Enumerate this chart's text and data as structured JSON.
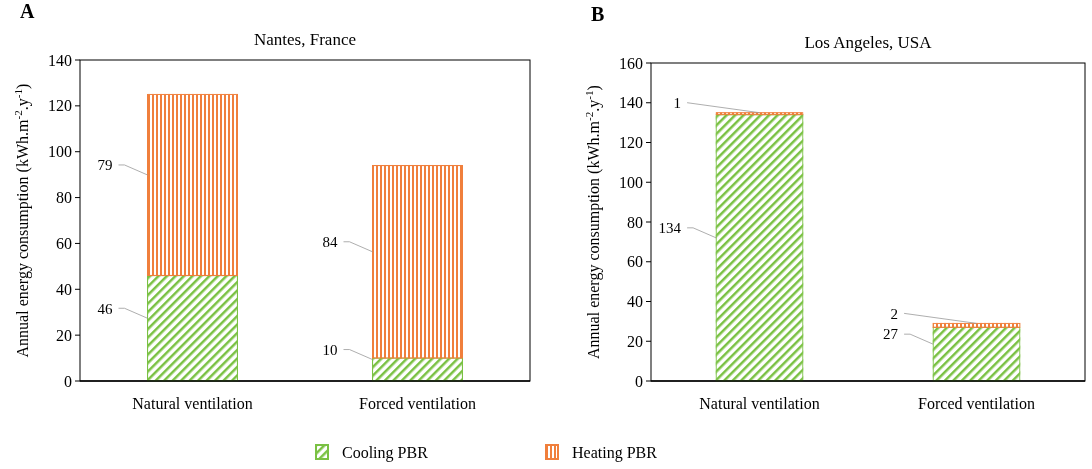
{
  "chart_data": [
    {
      "type": "bar",
      "title": "Nantes, France",
      "ylabel": "Annual energy consumption (kWh.m$^{-2}$.y$^{-1}$)",
      "annotations": [
        "A"
      ],
      "categories": [
        "Natural ventilation",
        "Forced ventilation"
      ],
      "stacked": true,
      "data_labels": true,
      "ylim": [
        0,
        140
      ],
      "yticks": [
        0,
        20,
        40,
        60,
        80,
        100,
        120,
        140
      ],
      "legend": "bottom",
      "series": [
        {
          "name": "Cooling PBR",
          "color": "#7ac143",
          "values": [
            46,
            10
          ]
        },
        {
          "name": "Heating PBR",
          "color": "#f07f3c",
          "values": [
            79,
            84
          ]
        }
      ]
    },
    {
      "type": "bar",
      "title": "Los Angeles, USA",
      "ylabel": "Annual energy consumption (kWh.m$^{-2}$.y$^{-1}$)",
      "annotations": [
        "B"
      ],
      "categories": [
        "Natural ventilation",
        "Forced ventilation"
      ],
      "stacked": true,
      "data_labels": true,
      "ylim": [
        0,
        160
      ],
      "yticks": [
        0,
        20,
        40,
        60,
        80,
        100,
        120,
        140,
        160
      ],
      "series": [
        {
          "color": "#7ac143",
          "values": [
            134,
            27
          ]
        },
        {
          "color": "#f07f3c",
          "values": [
            1,
            2
          ]
        }
      ]
    }
  ]
}
